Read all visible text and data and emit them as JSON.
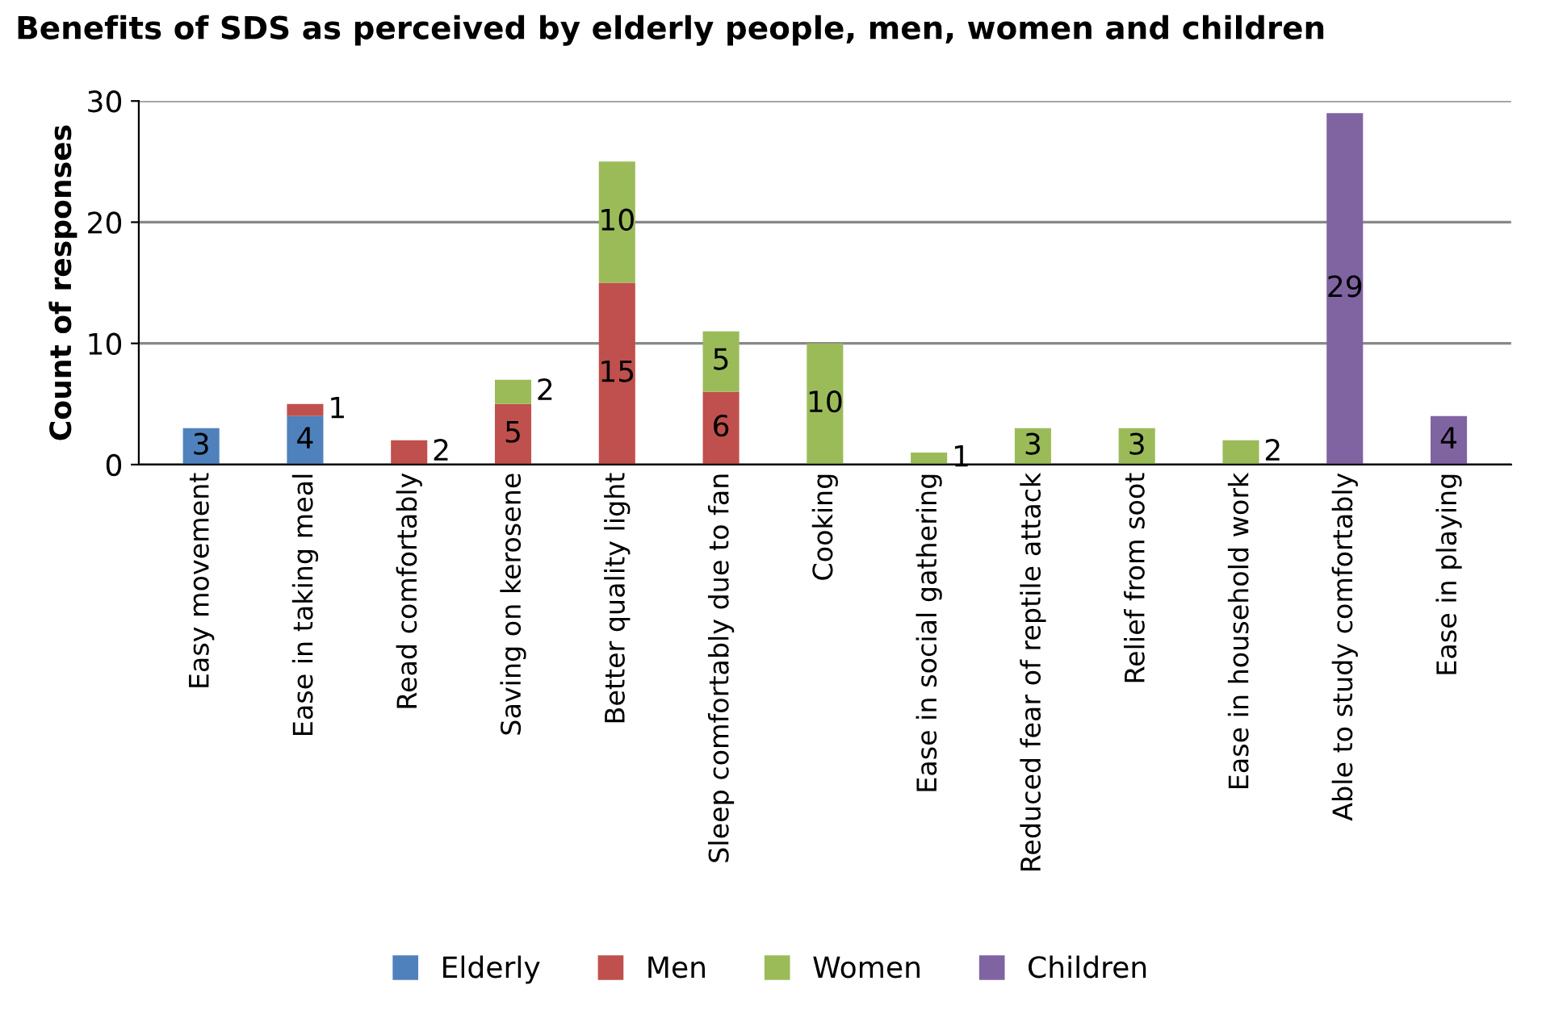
{
  "chart_data": {
    "type": "bar",
    "stacked": true,
    "title": "Benefits of SDS as perceived by elderly people, men, women and children",
    "ylabel": "Count of responses",
    "categories": [
      "Easy movement",
      "Ease in taking meal",
      "Read comfortably",
      "Saving on kerosene",
      "Better quality light",
      "Sleep comfortably due to fan",
      "Cooking",
      "Ease in social gathering",
      "Reduced fear of reptile attack",
      "Relief from soot",
      "Ease in household work",
      "Able to study comfortably",
      "Ease in playing"
    ],
    "series": [
      {
        "name": "Elderly",
        "color": "#4f81bd",
        "values": [
          3,
          4,
          null,
          null,
          null,
          null,
          null,
          null,
          null,
          null,
          null,
          null,
          null
        ]
      },
      {
        "name": "Men",
        "color": "#c0504d",
        "values": [
          null,
          1,
          2,
          5,
          15,
          6,
          null,
          null,
          null,
          null,
          null,
          null,
          null
        ]
      },
      {
        "name": "Women",
        "color": "#9bbb59",
        "values": [
          null,
          null,
          null,
          2,
          10,
          5,
          10,
          1,
          3,
          3,
          2,
          null,
          null
        ]
      },
      {
        "name": "Children",
        "color": "#8064a2",
        "values": [
          null,
          null,
          null,
          null,
          null,
          null,
          null,
          null,
          null,
          null,
          null,
          29,
          4
        ]
      }
    ],
    "ylim": [
      0,
      30
    ],
    "yticks": [
      0,
      10,
      20,
      30
    ],
    "grid": "y",
    "legend": "bottom",
    "data_labels": true
  }
}
